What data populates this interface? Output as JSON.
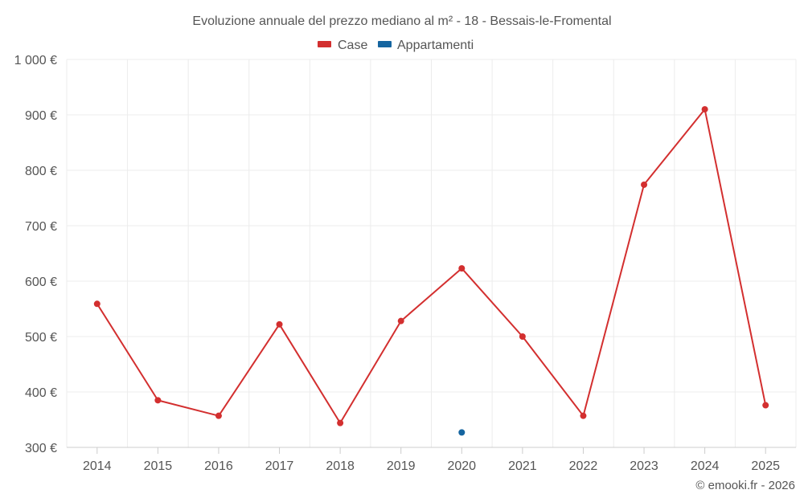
{
  "chart_data": {
    "type": "line",
    "title": "Evoluzione annuale del prezzo mediano al m² - 18 - Bessais-le-Fromental",
    "categories": [
      "2014",
      "2015",
      "2016",
      "2017",
      "2018",
      "2019",
      "2020",
      "2021",
      "2022",
      "2023",
      "2024",
      "2025"
    ],
    "ylim": [
      300,
      1000
    ],
    "yticks": [
      300,
      400,
      500,
      600,
      700,
      800,
      900,
      1000
    ],
    "ytick_labels": [
      "300 €",
      "400 €",
      "500 €",
      "600 €",
      "700 €",
      "800 €",
      "900 €",
      "1 000 €"
    ],
    "grid": true,
    "legend_position": "top-center",
    "series": [
      {
        "name": "Case",
        "color": "#d32f2f",
        "values": [
          559,
          385,
          357,
          522,
          344,
          528,
          623,
          500,
          357,
          774,
          910,
          376
        ]
      },
      {
        "name": "Appartamenti",
        "color": "#1565a0",
        "values": [
          null,
          null,
          null,
          null,
          null,
          null,
          327,
          null,
          null,
          null,
          null,
          null
        ]
      }
    ]
  },
  "credit": "© emooki.fr - 2026"
}
